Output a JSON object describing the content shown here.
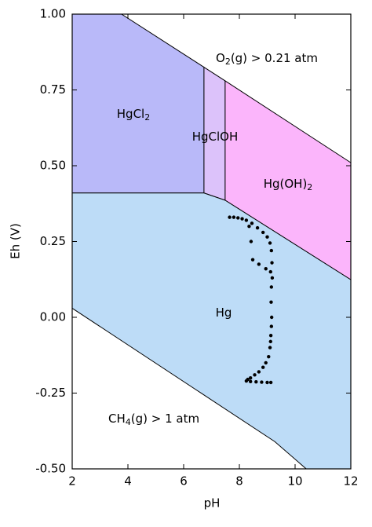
{
  "chart_data": {
    "type": "scatter",
    "xlabel": "pH",
    "ylabel": "Eh (V)",
    "xlim": [
      2,
      12
    ],
    "xticks": [
      2,
      4,
      6,
      8,
      10,
      12
    ],
    "ylim": [
      -0.5,
      1.0
    ],
    "yticks": [
      {
        "value": -0.5,
        "label": "-0.50"
      },
      {
        "value": -0.25,
        "label": "-0.25"
      },
      {
        "value": 0,
        "label": "0.00"
      },
      {
        "value": 0.25,
        "label": "0.25"
      },
      {
        "value": 0.5,
        "label": "0.50"
      },
      {
        "value": 0.75,
        "label": "0.75"
      },
      {
        "value": 1.0,
        "label": "1.00"
      }
    ],
    "regions": [
      {
        "label_parts": [
          "HgCl",
          "2"
        ],
        "color": "#b9b9f9",
        "x": [
          2,
          3.77,
          6.73,
          6.73,
          2
        ],
        "y": [
          1.0,
          1.0,
          0.825,
          0.41,
          0.41
        ]
      },
      {
        "label_parts": [
          "HgClOH"
        ],
        "color": "#dcc2fa",
        "x": [
          6.73,
          7.49,
          7.49,
          6.73
        ],
        "y": [
          0.825,
          0.78,
          0.386,
          0.41
        ]
      },
      {
        "label_parts": [
          "Hg(OH)",
          "2"
        ],
        "color": "#fbb5fb",
        "x": [
          7.49,
          12,
          12,
          7.49
        ],
        "y": [
          0.78,
          0.51,
          0.124,
          0.386
        ]
      },
      {
        "label_parts": [
          "Hg"
        ],
        "color": "#bddcf7",
        "x": [
          2,
          6.73,
          7.49,
          12,
          12,
          10.4,
          9.27,
          2
        ],
        "y": [
          0.41,
          0.41,
          0.386,
          0.124,
          -0.5,
          -0.5,
          -0.41,
          0.03
        ]
      }
    ],
    "annotations": [
      {
        "label_parts": [
          "O",
          "2",
          "(g) > 0.21 atm"
        ]
      },
      {
        "label_parts": [
          "CH",
          "4",
          "(g) > 1 atm"
        ]
      }
    ],
    "series": [
      {
        "color": "#000000",
        "x": [
          7.65,
          7.8,
          7.95,
          8.1,
          8.25,
          8.45,
          8.65,
          8.85,
          9.0,
          9.1,
          9.15,
          9.17,
          9.18,
          8.35,
          8.42,
          8.48,
          8.7,
          8.95,
          9.12,
          9.15,
          9.14,
          9.16,
          9.15,
          9.13,
          9.12,
          9.1,
          9.05,
          8.95,
          8.85,
          8.7,
          8.55,
          8.4,
          8.3,
          8.25,
          8.4,
          8.6,
          8.8,
          9.0,
          9.13
        ],
        "values": [
          0.33,
          0.33,
          0.328,
          0.325,
          0.32,
          0.31,
          0.295,
          0.28,
          0.265,
          0.245,
          0.22,
          0.18,
          0.13,
          0.3,
          0.25,
          0.19,
          0.175,
          0.16,
          0.15,
          0.1,
          0.05,
          0.0,
          -0.03,
          -0.06,
          -0.08,
          -0.1,
          -0.13,
          -0.15,
          -0.165,
          -0.18,
          -0.19,
          -0.2,
          -0.205,
          -0.21,
          -0.212,
          -0.213,
          -0.214,
          -0.215,
          -0.215
        ]
      }
    ]
  }
}
